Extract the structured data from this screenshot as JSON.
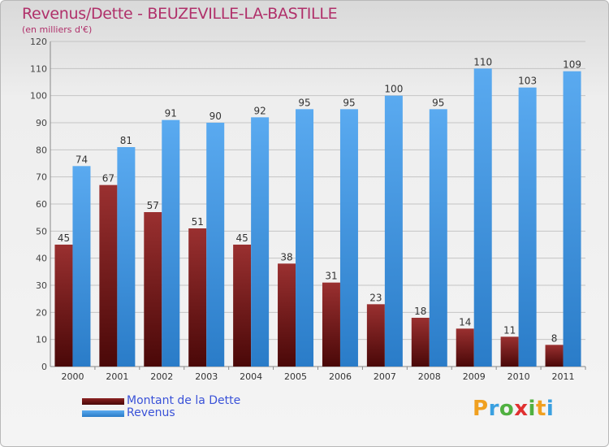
{
  "chart_data": {
    "type": "bar",
    "title": "Revenus/Dette - BEUZEVILLE-LA-BASTILLE",
    "subtitle": "(en milliers d'€)",
    "categories": [
      "2000",
      "2001",
      "2002",
      "2003",
      "2004",
      "2005",
      "2006",
      "2007",
      "2008",
      "2009",
      "2010",
      "2011"
    ],
    "series": [
      {
        "name": "Montant de la Dette",
        "color": "#7a1a1a",
        "values": [
          45,
          67,
          57,
          51,
          45,
          38,
          31,
          23,
          18,
          14,
          11,
          8
        ]
      },
      {
        "name": "Revenus",
        "color": "#3a8fdc",
        "values": [
          74,
          81,
          91,
          90,
          92,
          95,
          95,
          100,
          95,
          110,
          103,
          109
        ]
      }
    ],
    "ylim": [
      0,
      120
    ],
    "yticks": [
      0,
      10,
      20,
      30,
      40,
      50,
      60,
      70,
      80,
      90,
      100,
      110,
      120
    ],
    "grid": true,
    "legend_position": "bottom-left"
  },
  "logo": {
    "letters": [
      "P",
      "r",
      "o",
      "x",
      "i",
      "t",
      "i"
    ],
    "colors": [
      "#f0a020",
      "#3aa0e0",
      "#50b040",
      "#e03030",
      "#50b040",
      "#f0a020",
      "#3aa0e0"
    ],
    "text": "Proxiti"
  }
}
